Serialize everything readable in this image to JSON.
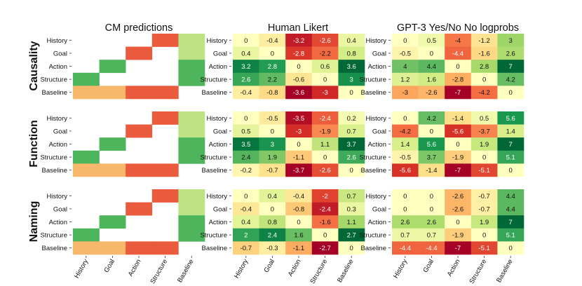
{
  "figure": {
    "column_titles": [
      "CM predictions",
      "Human Likert",
      "GPT-3 Yes/No No logprobs"
    ],
    "row_titles": [
      "Causality",
      "Function",
      "Naming"
    ],
    "row_labels": [
      "History",
      "Goal",
      "Action",
      "Structure",
      "Baseline"
    ],
    "col_labels": [
      "History",
      "Goal",
      "Action",
      "Structure",
      "Baseline"
    ]
  },
  "chart_data": [
    {
      "type": "heatmap",
      "panel": "Causality / CM predictions",
      "categorical": true,
      "cells": [
        [
          "",
          "",
          "",
          "red",
          "lightgreen"
        ],
        [
          "",
          "",
          "red",
          "",
          "lightgreen"
        ],
        [
          "",
          "green",
          "",
          "",
          "green"
        ],
        [
          "green",
          "",
          "",
          "",
          "green"
        ],
        [
          "orange",
          "orange",
          "red",
          "red",
          ""
        ]
      ]
    },
    {
      "type": "heatmap",
      "panel": "Causality / Human Likert",
      "vmin": -3.6,
      "vmax": 3.6,
      "values": [
        [
          "0",
          "-0.4",
          "-3.2",
          "-2.6",
          "0.4"
        ],
        [
          "0.4",
          "0",
          "-2.8",
          "-2.2",
          "0.8"
        ],
        [
          "3.2",
          "2.8",
          "0",
          "0.6",
          "3.6"
        ],
        [
          "2.6",
          "2.2",
          "-0.6",
          "0",
          "3"
        ],
        [
          "-0.4",
          "-0.8",
          "-3.6",
          "-3",
          "0"
        ]
      ]
    },
    {
      "type": "heatmap",
      "panel": "Causality / GPT-3 Yes/No No logprobs",
      "vmin": -7,
      "vmax": 7,
      "values": [
        [
          "0",
          "0.5",
          "-4",
          "-1.2",
          "3"
        ],
        [
          "-0.5",
          "0",
          "-4.4",
          "-1.6",
          "2.6"
        ],
        [
          "4",
          "4.4",
          "0",
          "2.8",
          "7"
        ],
        [
          "1.2",
          "1.6",
          "-2.8",
          "0",
          "4.2"
        ],
        [
          "-3",
          "-2.6",
          "-7",
          "-4.2",
          "0"
        ]
      ]
    },
    {
      "type": "heatmap",
      "panel": "Function / CM predictions",
      "categorical": true,
      "cells": [
        [
          "",
          "",
          "",
          "red",
          "lightgreen"
        ],
        [
          "",
          "",
          "red",
          "",
          "lightgreen"
        ],
        [
          "",
          "green",
          "",
          "",
          "green"
        ],
        [
          "green",
          "",
          "",
          "",
          "green"
        ],
        [
          "orange",
          "orange",
          "red",
          "red",
          ""
        ]
      ]
    },
    {
      "type": "heatmap",
      "panel": "Function / Human Likert",
      "vmin": -3.7,
      "vmax": 3.7,
      "values": [
        [
          "0",
          "-0.5",
          "-3.5",
          "-2.4",
          "0.2"
        ],
        [
          "0.5",
          "0",
          "-3",
          "-1.9",
          "0.7"
        ],
        [
          "3.5",
          "3",
          "0",
          "1.1",
          "3.7"
        ],
        [
          "2.4",
          "1.9",
          "-1.1",
          "0",
          "2.6"
        ],
        [
          "-0.2",
          "-0.7",
          "-3.7",
          "-2.6",
          "0"
        ]
      ]
    },
    {
      "type": "heatmap",
      "panel": "Function / GPT-3 Yes/No No logprobs",
      "vmin": -7,
      "vmax": 7,
      "values": [
        [
          "0",
          "4.2",
          "-1.4",
          "0.5",
          "5.6"
        ],
        [
          "-4.2",
          "0",
          "-5.6",
          "-3.7",
          "1.4"
        ],
        [
          "1.4",
          "5.6",
          "0",
          "1.9",
          "7"
        ],
        [
          "-0.5",
          "3.7",
          "-1.9",
          "0",
          "5.1"
        ],
        [
          "-5.6",
          "-1.4",
          "-7",
          "-5.1",
          "0"
        ]
      ]
    },
    {
      "type": "heatmap",
      "panel": "Naming / CM predictions",
      "categorical": true,
      "cells": [
        [
          "",
          "",
          "",
          "red",
          "lightgreen"
        ],
        [
          "",
          "",
          "red",
          "",
          "lightgreen"
        ],
        [
          "",
          "green",
          "",
          "",
          "green"
        ],
        [
          "green",
          "",
          "",
          "",
          "green"
        ],
        [
          "orange",
          "orange",
          "red",
          "red",
          ""
        ]
      ]
    },
    {
      "type": "heatmap",
      "panel": "Naming / Human Likert",
      "vmin": -2.7,
      "vmax": 2.7,
      "values": [
        [
          "0",
          "0.4",
          "-0.4",
          "-2",
          "0.7"
        ],
        [
          "-0.4",
          "0",
          "-0.8",
          "-2.4",
          "0.3"
        ],
        [
          "0.4",
          "0.8",
          "0",
          "-1.6",
          "1.1"
        ],
        [
          "2",
          "2.4",
          "1.6",
          "0",
          "2.7"
        ],
        [
          "-0.7",
          "-0.3",
          "-1.1",
          "-2.7",
          "0"
        ]
      ]
    },
    {
      "type": "heatmap",
      "panel": "Naming / GPT-3 Yes/No No logprobs",
      "vmin": -7,
      "vmax": 7,
      "values": [
        [
          "0",
          "0",
          "-2.6",
          "-0.7",
          "4.4"
        ],
        [
          "0",
          "0",
          "-2.6",
          "-0.7",
          "4.4"
        ],
        [
          "2.6",
          "2.6",
          "0",
          "1.9",
          "7"
        ],
        [
          "0.7",
          "0.7",
          "-1.9",
          "0",
          "5.1"
        ],
        [
          "-4.4",
          "-4.4",
          "-7",
          "-5.1",
          "0"
        ]
      ]
    }
  ],
  "colors": {
    "categorical": {
      "red": "#ea5a3c",
      "orange": "#f8b86c",
      "green": "#4eb55d",
      "lightgreen": "#bfe285"
    }
  }
}
